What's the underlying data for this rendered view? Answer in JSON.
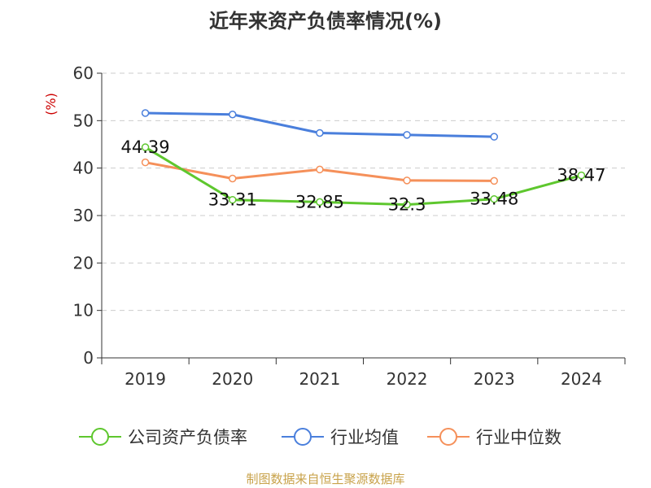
{
  "chart_data": {
    "type": "line",
    "title": "近年来资产负债率情况(%)",
    "ylabel": "(%)",
    "categories": [
      "2019",
      "2020",
      "2021",
      "2022",
      "2023",
      "2024"
    ],
    "ylim": [
      0,
      60
    ],
    "yticks": [
      0,
      10,
      20,
      30,
      40,
      50,
      60
    ],
    "grid": true,
    "legend_position": "bottom",
    "series": [
      {
        "name": "公司资产负债率",
        "color": "#5ec72e",
        "values": [
          44.39,
          33.31,
          32.85,
          32.3,
          33.48,
          38.47
        ],
        "labels": [
          "44.39",
          "33.31",
          "32.85",
          "32.3",
          "33.48",
          "38.47"
        ]
      },
      {
        "name": "行业均值",
        "color": "#4a7fdc",
        "values": [
          51.6,
          51.3,
          47.4,
          47.0,
          46.6,
          null
        ]
      },
      {
        "name": "行业中位数",
        "color": "#f5905a",
        "values": [
          41.2,
          37.8,
          39.7,
          37.4,
          37.3,
          null
        ]
      }
    ]
  },
  "footer": {
    "source": "制图数据来自恒生聚源数据库"
  }
}
